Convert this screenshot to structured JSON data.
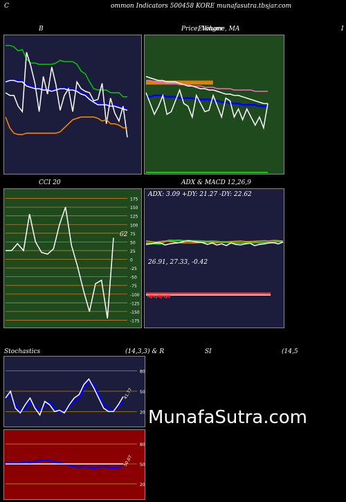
{
  "header": {
    "left": "C",
    "title": "ommon  Indicators 500458  KORE munafasutra.tbsjar.com"
  },
  "watermark": "MunafaSutra.com",
  "colors": {
    "navy": "#1c1c3c",
    "green": "#1e4a1e",
    "red": "#8b0000"
  },
  "chart_data": [
    {
      "type": "line",
      "title": "B",
      "ylim": [
        0,
        100
      ],
      "series": [
        {
          "color": "#00cc00",
          "values": [
            93,
            93,
            92,
            89,
            90,
            83,
            80,
            80,
            79,
            79,
            79,
            79,
            80,
            82,
            81,
            81,
            81,
            79,
            74,
            72,
            66,
            61,
            60,
            60,
            60,
            58,
            58,
            58,
            55,
            55
          ]
        },
        {
          "color": "#0000ff",
          "values": [
            66,
            67,
            68,
            67,
            67,
            64,
            63,
            62,
            62,
            61,
            61,
            60,
            61,
            62,
            62,
            61,
            61,
            60,
            58,
            57,
            54,
            52,
            50,
            50,
            50,
            49,
            49,
            48,
            47,
            46
          ]
        },
        {
          "color": "#ffffff",
          "values": [
            66,
            67,
            67,
            66,
            66,
            63,
            62,
            61,
            61,
            60,
            60,
            59,
            60,
            61,
            61,
            60,
            60,
            59,
            57,
            56,
            53,
            51,
            49,
            49,
            49,
            48,
            48,
            47,
            46,
            45
          ]
        },
        {
          "color": "#ffffff",
          "values": [
            58,
            56,
            56,
            48,
            44,
            88,
            78,
            65,
            44,
            70,
            57,
            77,
            64,
            45,
            56,
            61,
            44,
            66,
            61,
            59,
            58,
            52,
            53,
            65,
            35,
            54,
            43,
            37,
            48,
            25
          ]
        },
        {
          "color": "#ff8c00",
          "values": [
            40,
            32,
            28,
            27,
            27,
            28,
            28,
            28,
            28,
            28,
            28,
            28,
            28,
            29,
            32,
            35,
            38,
            39,
            40,
            40,
            40,
            40,
            39,
            37,
            38,
            35,
            35,
            34,
            32,
            32
          ]
        }
      ]
    },
    {
      "type": "line",
      "title": "Price,  Volume,  MA",
      "overlap_text": "Ellinger",
      "ylim": [
        0,
        100
      ],
      "series": [
        {
          "color": "#ff69b4",
          "values": [
            67,
            67,
            66,
            66,
            66,
            65,
            65,
            65,
            64,
            64,
            64,
            63,
            63,
            63,
            62,
            62,
            62,
            61,
            61,
            61,
            61,
            60,
            60,
            60,
            60,
            60,
            59,
            59,
            59,
            59
          ]
        },
        {
          "color": "#ffffff",
          "values": [
            70,
            69,
            68,
            67,
            67,
            66,
            66,
            66,
            65,
            64,
            63,
            63,
            62,
            61,
            61,
            60,
            60,
            59,
            58,
            57,
            57,
            56,
            56,
            55,
            54,
            53,
            52,
            51,
            50,
            50
          ]
        },
        {
          "color": "#0000ff",
          "values": [
            55,
            55,
            56,
            56,
            56,
            55,
            55,
            55,
            54,
            54,
            54,
            54,
            53,
            53,
            53,
            53,
            52,
            52,
            51,
            51,
            50,
            50,
            50,
            49,
            49,
            49,
            49,
            48,
            48,
            48
          ]
        },
        {
          "color": "#ffffff",
          "values": [
            58,
            50,
            42,
            48,
            56,
            42,
            44,
            52,
            60,
            50,
            48,
            40,
            56,
            50,
            44,
            45,
            56,
            48,
            40,
            54,
            52,
            40,
            46,
            38,
            46,
            40,
            34,
            40,
            32,
            50
          ]
        }
      ],
      "bands": [
        {
          "color": "#ff8c00",
          "from": 64,
          "to": 67
        }
      ]
    },
    {
      "type": "line",
      "title": "CCI 20",
      "current_label": "62",
      "ylim": [
        -190,
        200
      ],
      "yticks": [
        175,
        150,
        125,
        100,
        75,
        50,
        25,
        0,
        -25,
        -50,
        -75,
        -100,
        -125,
        -150,
        -175
      ],
      "series": [
        {
          "color": "#ffffff",
          "values": [
            25,
            25,
            45,
            25,
            130,
            50,
            20,
            15,
            30,
            100,
            150,
            40,
            -20,
            -90,
            -150,
            -70,
            -60,
            -170,
            62
          ]
        }
      ]
    },
    {
      "type": "line",
      "title": "ADX  & MACD 12,26,9",
      "adx_text": "ADX: 3.09 +DY: 21.27 -DY: 22.62",
      "macd_text": "26.91,  27.33,  -0.42",
      "ylim": [
        0,
        100
      ],
      "series": [
        {
          "name": "ADX",
          "color": "#22cc22",
          "values": [
            55,
            54,
            53,
            52,
            60,
            64,
            63,
            64,
            62,
            63,
            62,
            62,
            61,
            60,
            61,
            60,
            58,
            58,
            56,
            56,
            55,
            55,
            56,
            57,
            56,
            57,
            57,
            58,
            60,
            59
          ]
        },
        {
          "name": "+DY",
          "color": "#ff8c00",
          "values": [
            62,
            60,
            58,
            60,
            62,
            60,
            58,
            56,
            55,
            56,
            55,
            56,
            57,
            58,
            57,
            56,
            58,
            59,
            60,
            61,
            62,
            60,
            60,
            61,
            62,
            63,
            62,
            64,
            63,
            62
          ]
        },
        {
          "name": "-DY",
          "color": "#ffffff",
          "values": [
            50,
            52,
            55,
            56,
            48,
            52,
            54,
            56,
            60,
            62,
            60,
            58,
            56,
            50,
            55,
            48,
            52,
            46,
            55,
            50,
            48,
            52,
            54,
            46,
            50,
            52,
            55,
            56,
            52,
            58
          ]
        }
      ]
    },
    {
      "type": "line",
      "title": "Stochastics",
      "params": "(14,3,3) & R",
      "value_label": "41.77",
      "ylim": [
        0,
        100
      ],
      "yticks": [
        80,
        50,
        20
      ],
      "series": [
        {
          "color": "#0000ff",
          "values": [
            40,
            45,
            30,
            20,
            25,
            35,
            28,
            22,
            30,
            35,
            25,
            20,
            22,
            28,
            35,
            40,
            55,
            65,
            60,
            45,
            30,
            25,
            22,
            28,
            35
          ]
        },
        {
          "color": "#ffffff",
          "values": [
            40,
            50,
            25,
            18,
            30,
            40,
            25,
            15,
            35,
            30,
            20,
            22,
            18,
            30,
            40,
            45,
            60,
            68,
            55,
            40,
            25,
            20,
            20,
            30,
            42
          ]
        }
      ]
    },
    {
      "type": "line",
      "title": "SI",
      "params": "(14,5",
      "value_label": "50.07",
      "ylim": [
        0,
        100
      ],
      "yticks": [
        80,
        50,
        20
      ],
      "series": [
        {
          "color": "#0000ff",
          "values": [
            52,
            52,
            51,
            52,
            53,
            52,
            54,
            55,
            56,
            55,
            53,
            52,
            50,
            48,
            46,
            45,
            46,
            45,
            44,
            45,
            46,
            45,
            44,
            45,
            46
          ]
        },
        {
          "color": "#ffffff",
          "values": [
            50,
            50,
            50,
            50,
            50,
            50,
            50,
            50,
            50,
            50,
            50,
            50,
            50,
            50,
            50,
            50,
            50,
            50,
            50,
            50,
            50,
            50,
            50,
            50,
            50
          ]
        }
      ]
    }
  ]
}
